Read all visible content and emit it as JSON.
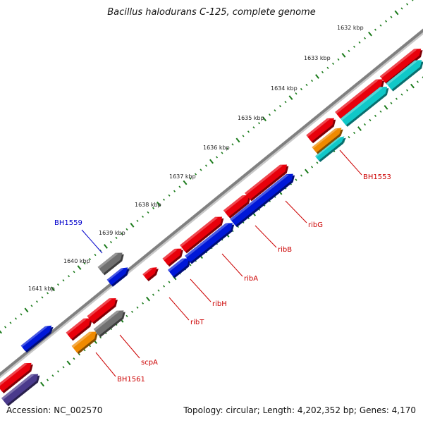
{
  "title": "Bacillus halodurans C-125, complete genome",
  "footer": {
    "accession": "Accession: NC_002570",
    "summary": "Topology: circular; Length: 4,202,352 bp; Genes: 4,170"
  },
  "ruler_labels": [
    "1632 kbp",
    "1633 kbp",
    "1634 kbp",
    "1635 kbp",
    "1636 kbp",
    "1637 kbp",
    "1638 kbp",
    "1639 kbp",
    "1640 kbp",
    "1641 kbp"
  ],
  "gene_labels": [
    "BH1553",
    "ribG",
    "ribB",
    "ribA",
    "ribH",
    "ribT",
    "scpA",
    "BH1561",
    "BH1559"
  ],
  "colors": {
    "red": "#e8000b",
    "blue": "#0018d8",
    "gray": "#707070",
    "orange": "#f08a00",
    "cyan": "#10c8c8",
    "purple": "#4a3a8c",
    "label_red": "#cc0000",
    "label_blue": "#0000cc",
    "tick_green": "#1a7a1a",
    "backbone": "#808080"
  }
}
